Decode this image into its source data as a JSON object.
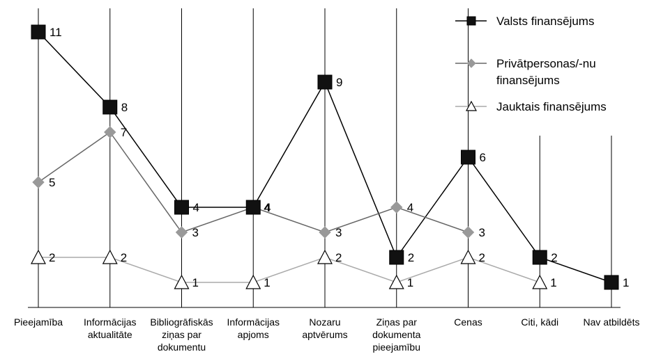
{
  "chart_data": {
    "type": "line",
    "categories": [
      [
        "Pieejamība"
      ],
      [
        "Informācijas",
        "aktualitāte"
      ],
      [
        "Bibliogrāfiskās",
        "ziņas par",
        "dokumentu"
      ],
      [
        "Informācijas",
        "apjoms"
      ],
      [
        "Nozaru",
        "aptvērums"
      ],
      [
        "Ziņas par",
        "dokumenta",
        "pieejamību"
      ],
      [
        "Cenas"
      ],
      [
        "Citi, kādi"
      ],
      [
        "Nav atbildēts"
      ]
    ],
    "series": [
      {
        "name": "Valsts finansējums",
        "marker": "square",
        "color": "#000000",
        "values": [
          11,
          8,
          4,
          4,
          9,
          2,
          6,
          2,
          1
        ]
      },
      {
        "name_lines": [
          "Privātpersonas/-nu",
          "finansējums"
        ],
        "marker": "diamond",
        "color": "#999999",
        "line_color": "#666666",
        "values": [
          5,
          7,
          3,
          4,
          3,
          4,
          3,
          null,
          null
        ]
      },
      {
        "name": "Jauktais finansējums",
        "marker": "triangle",
        "color": "#ffffff",
        "line_color": "#aaaaaa",
        "values": [
          2,
          2,
          1,
          1,
          2,
          1,
          2,
          1,
          null
        ]
      }
    ],
    "ylim": [
      0,
      12
    ],
    "grid": "vertical",
    "legend": "top-right"
  }
}
